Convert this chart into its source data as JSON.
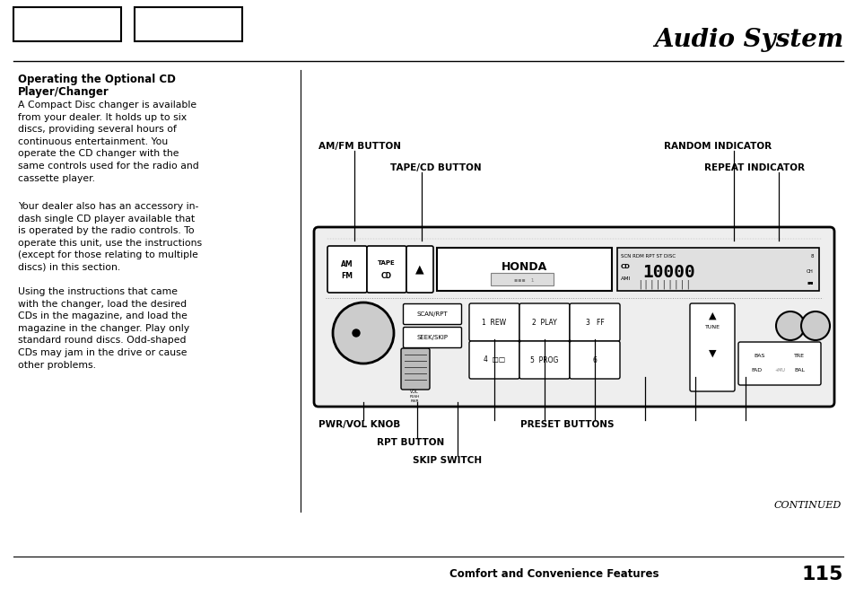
{
  "page_title": "Audio System",
  "section_title_line1": "Operating the Optional CD",
  "section_title_line2": "Player/Changer",
  "para1": "A Compact Disc changer is available\nfrom your dealer. It holds up to six\ndiscs, providing several hours of\ncontinuous entertainment. You\noperate the CD changer with the\nsame controls used for the radio and\ncassette player.",
  "para2": "Your dealer also has an accessory in-\ndash single CD player available that\nis operated by the radio controls. To\noperate this unit, use the instructions\n(except for those relating to multiple\ndiscs) in this section.",
  "para3": "Using the instructions that came\nwith the changer, load the desired\nCDs in the magazine, and load the\nmagazine in the changer. Play only\nstandard round discs. Odd-shaped\nCDs may jam in the drive or cause\nother problems.",
  "continued_text": "CONTINUED",
  "footer_text": "Comfort and Convenience Features",
  "page_number": "115",
  "label_amfm": "AM/FM BUTTON",
  "label_tape": "TAPE/CD BUTTON",
  "label_random": "RANDOM INDICATOR",
  "label_repeat": "REPEAT INDICATOR",
  "label_pwr": "PWR/VOL KNOB",
  "label_rpt": "RPT BUTTON",
  "label_skip": "SKIP SWITCH",
  "label_preset": "PRESET BUTTONS",
  "bg_color": "#ffffff",
  "text_color": "#000000"
}
